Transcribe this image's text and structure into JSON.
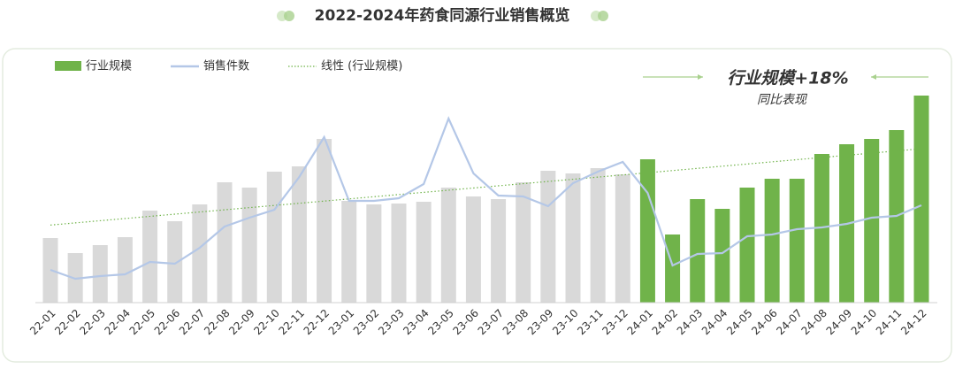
{
  "chart_data": {
    "type": "bar_line",
    "title": "2022-2024年药食同源行业销售概览",
    "categories": [
      "22-01",
      "22-02",
      "22-03",
      "22-04",
      "22-05",
      "22-06",
      "22-07",
      "22-08",
      "22-09",
      "22-10",
      "22-11",
      "22-12",
      "23-01",
      "23-02",
      "23-03",
      "23-04",
      "23-05",
      "23-06",
      "23-07",
      "23-08",
      "23-09",
      "23-10",
      "23-11",
      "23-12",
      "24-01",
      "24-02",
      "24-03",
      "24-04",
      "24-05",
      "24-06",
      "24-07",
      "24-08",
      "24-09",
      "24-10",
      "24-11",
      "24-12"
    ],
    "series": [
      {
        "name": "行业规模",
        "kind": "bar",
        "color": "#70b34a",
        "colors": [
          "#d9d9d9",
          "#d9d9d9",
          "#d9d9d9",
          "#d9d9d9",
          "#d9d9d9",
          "#d9d9d9",
          "#d9d9d9",
          "#d9d9d9",
          "#d9d9d9",
          "#d9d9d9",
          "#d9d9d9",
          "#d9d9d9",
          "#d9d9d9",
          "#d9d9d9",
          "#d9d9d9",
          "#d9d9d9",
          "#d9d9d9",
          "#d9d9d9",
          "#d9d9d9",
          "#d9d9d9",
          "#d9d9d9",
          "#d9d9d9",
          "#d9d9d9",
          "#d9d9d9",
          "#70b34a",
          "#70b34a",
          "#70b34a",
          "#70b34a",
          "#70b34a",
          "#70b34a",
          "#70b34a",
          "#70b34a",
          "#70b34a",
          "#70b34a",
          "#70b34a",
          "#70b34a"
        ],
        "values": [
          73,
          56,
          65,
          74,
          104,
          92,
          111,
          136,
          130,
          148,
          154,
          185,
          115,
          111,
          112,
          114,
          130,
          120,
          117,
          136,
          149,
          146,
          152,
          145,
          162,
          77,
          117,
          106,
          130,
          140,
          140,
          168,
          179,
          185,
          195,
          234
        ]
      },
      {
        "name": "销售件数",
        "kind": "line",
        "color": "#b4c7e7",
        "values": [
          37,
          27,
          30,
          32,
          46,
          44,
          62,
          86,
          96,
          105,
          142,
          187,
          115,
          115,
          118,
          134,
          208,
          146,
          121,
          120,
          109,
          135,
          148,
          159,
          124,
          42,
          55,
          56,
          75,
          77,
          83,
          85,
          89,
          96,
          98,
          110
        ]
      }
    ],
    "trendline": {
      "name": "线性 (行业规模)",
      "color": "#70b34a"
    },
    "annotation": {
      "title": "行业规模+18%",
      "subtitle": "同比表现"
    },
    "ylim": [
      0,
      250
    ]
  }
}
